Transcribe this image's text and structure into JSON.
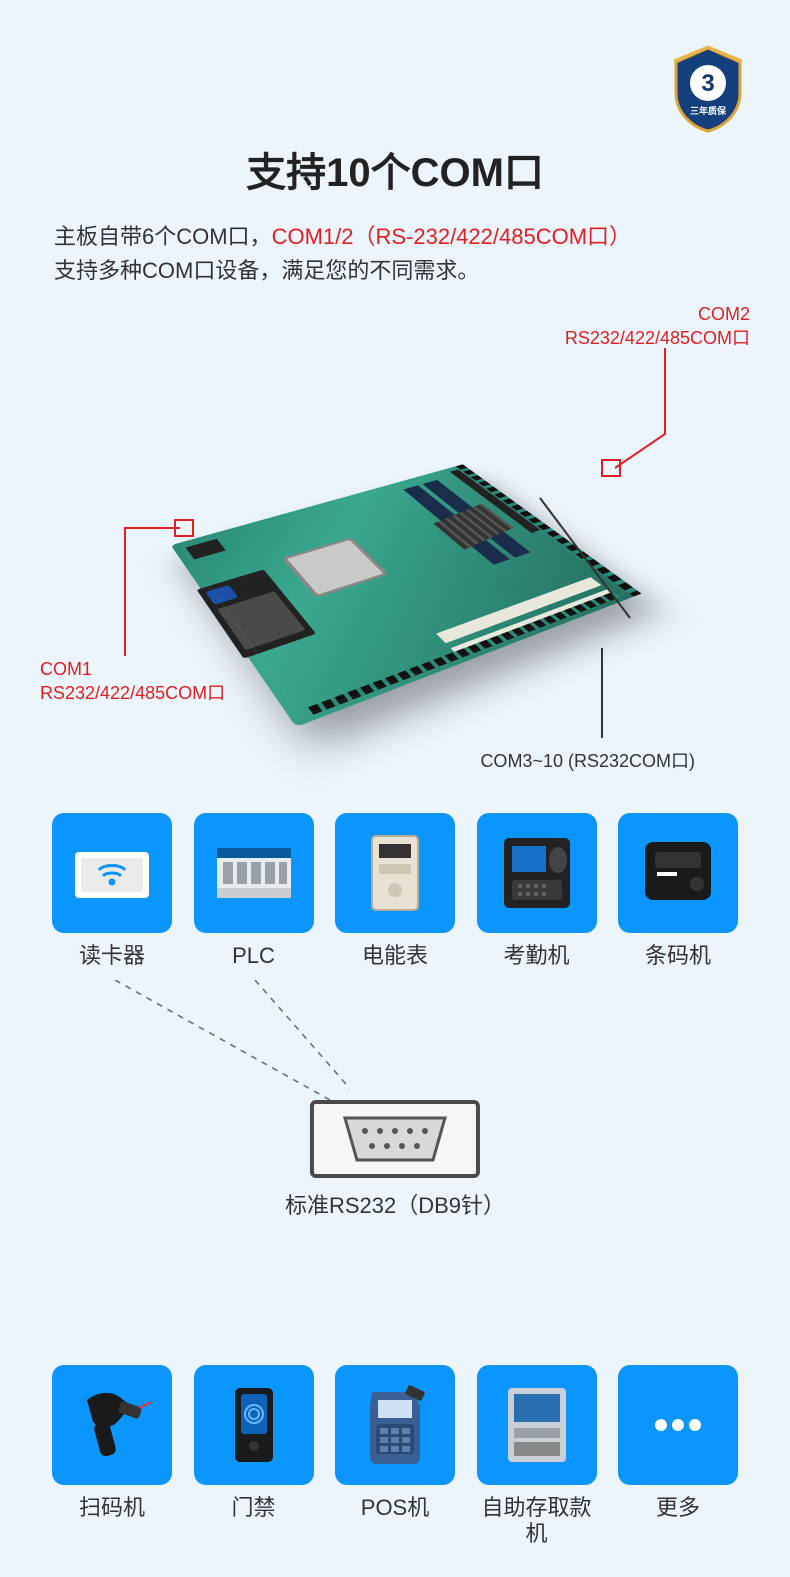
{
  "badge": {
    "number": "3",
    "ribbon": "三年质保"
  },
  "title": "支持10个COM口",
  "desc": {
    "p1": "主板自带6个COM口，",
    "p1_hl": "COM1/2（RS-232/422/485COM口）",
    "p2": "支持多种COM口设备，满足您的不同需求。"
  },
  "callouts": {
    "com1_name": "COM1",
    "com1_spec": "RS232/422/485COM口",
    "com2_name": "COM2",
    "com2_spec": "RS232/422/485COM口",
    "com3_10": "COM3~10 (RS232COM口)"
  },
  "hub_label": "标准RS232（DB9针）",
  "devices_top": [
    {
      "key": "reader",
      "label": "读卡器"
    },
    {
      "key": "plc",
      "label": "PLC"
    },
    {
      "key": "meter",
      "label": "电能表"
    },
    {
      "key": "attendance",
      "label": "考勤机"
    },
    {
      "key": "barcode",
      "label": "条码机"
    }
  ],
  "devices_bottom": [
    {
      "key": "scanner",
      "label": "扫码机"
    },
    {
      "key": "access",
      "label": "门禁"
    },
    {
      "key": "pos",
      "label": "POS机"
    },
    {
      "key": "atm",
      "label": "自助存取款机"
    },
    {
      "key": "more",
      "label": "更多"
    }
  ],
  "colors": {
    "bg": "#edf5fc",
    "tile": "#0a95ff",
    "hl": "#e02020",
    "pcb": "#3aa88e",
    "line": "#707070"
  }
}
